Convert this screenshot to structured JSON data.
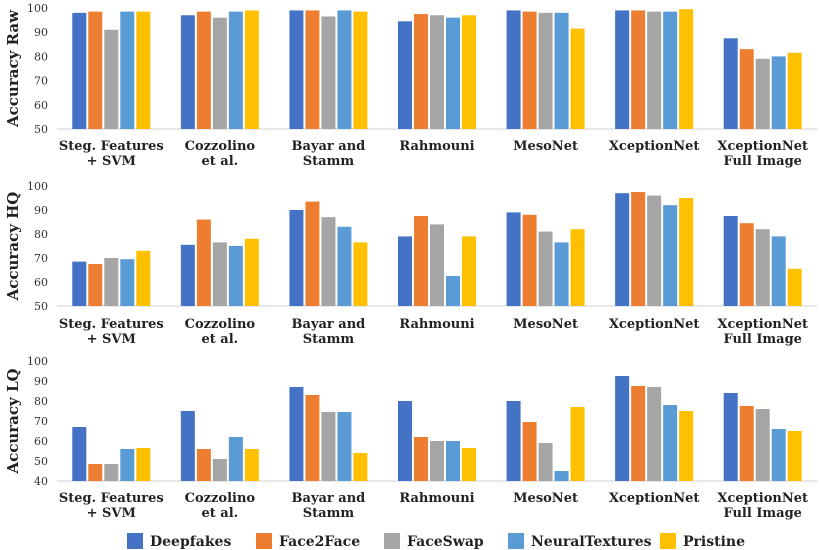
{
  "legend": [
    {
      "name": "Deepfakes",
      "color": "#4472C4"
    },
    {
      "name": "Face2Face",
      "color": "#ED7D31"
    },
    {
      "name": "FaceSwap",
      "color": "#A5A5A5"
    },
    {
      "name": "NeuralTextures",
      "color": "#5B9BD5"
    },
    {
      "name": "Pristine",
      "color": "#FFC000"
    }
  ],
  "chart_data": [
    {
      "type": "bar",
      "ylabel": "Accuracy Raw",
      "ylim": [
        50,
        100
      ],
      "yticks": [
        50,
        60,
        70,
        80,
        90,
        100
      ],
      "categories": [
        [
          "Steg. Features",
          "+ SVM"
        ],
        [
          "Cozzolino",
          "et al."
        ],
        [
          "Bayar and",
          "Stamm"
        ],
        [
          "Rahmouni"
        ],
        [
          "MesoNet"
        ],
        [
          "XceptionNet"
        ],
        [
          "XceptionNet",
          "Full Image"
        ]
      ],
      "series": [
        {
          "name": "Deepfakes",
          "values": [
            98,
            97,
            99,
            94.5,
            99,
            99,
            87.5
          ]
        },
        {
          "name": "Face2Face",
          "values": [
            98.5,
            98.5,
            99,
            97.5,
            98.5,
            99,
            83
          ]
        },
        {
          "name": "FaceSwap",
          "values": [
            91,
            96,
            96.5,
            97,
            98,
            98.5,
            79
          ]
        },
        {
          "name": "NeuralTextures",
          "values": [
            98.5,
            98.5,
            99,
            96,
            98,
            98.5,
            80
          ]
        },
        {
          "name": "Pristine",
          "values": [
            98.5,
            99,
            98.5,
            97,
            91.5,
            99.5,
            81.5
          ]
        }
      ]
    },
    {
      "type": "bar",
      "ylabel": "Accuracy HQ",
      "ylim": [
        50,
        100
      ],
      "yticks": [
        50,
        60,
        70,
        80,
        90,
        100
      ],
      "categories": [
        [
          "Steg. Features",
          "+ SVM"
        ],
        [
          "Cozzolino",
          "et al."
        ],
        [
          "Bayar and",
          "Stamm"
        ],
        [
          "Rahmouni"
        ],
        [
          "MesoNet"
        ],
        [
          "XceptionNet"
        ],
        [
          "XceptionNet",
          "Full Image"
        ]
      ],
      "series": [
        {
          "name": "Deepfakes",
          "values": [
            68.5,
            75.5,
            90,
            79,
            89,
            97,
            87.5
          ]
        },
        {
          "name": "Face2Face",
          "values": [
            67.5,
            86,
            93.5,
            87.5,
            88,
            97.5,
            84.5
          ]
        },
        {
          "name": "FaceSwap",
          "values": [
            70,
            76.5,
            87,
            84,
            81,
            96,
            82
          ]
        },
        {
          "name": "NeuralTextures",
          "values": [
            69.5,
            75,
            83,
            62.5,
            76.5,
            92,
            79
          ]
        },
        {
          "name": "Pristine",
          "values": [
            73,
            78,
            76.5,
            79,
            82,
            95,
            65.5
          ]
        }
      ]
    },
    {
      "type": "bar",
      "ylabel": "Accuracy LQ",
      "ylim": [
        40,
        100
      ],
      "yticks": [
        40,
        50,
        60,
        70,
        80,
        90,
        100
      ],
      "categories": [
        [
          "Steg. Features",
          "+ SVM"
        ],
        [
          "Cozzolino",
          "et al."
        ],
        [
          "Bayar and",
          "Stamm"
        ],
        [
          "Rahmouni"
        ],
        [
          "MesoNet"
        ],
        [
          "XceptionNet"
        ],
        [
          "XceptionNet",
          "Full Image"
        ]
      ],
      "series": [
        {
          "name": "Deepfakes",
          "values": [
            67,
            75,
            87,
            80,
            80,
            92.5,
            84
          ]
        },
        {
          "name": "Face2Face",
          "values": [
            48.5,
            56,
            83,
            62,
            69.5,
            87.5,
            77.5
          ]
        },
        {
          "name": "FaceSwap",
          "values": [
            48.5,
            51,
            74.5,
            60,
            59,
            87,
            76
          ]
        },
        {
          "name": "NeuralTextures",
          "values": [
            56,
            62,
            74.5,
            60,
            45,
            78,
            66
          ]
        },
        {
          "name": "Pristine",
          "values": [
            56.5,
            56,
            54,
            56.5,
            77,
            75,
            65
          ]
        }
      ]
    }
  ]
}
